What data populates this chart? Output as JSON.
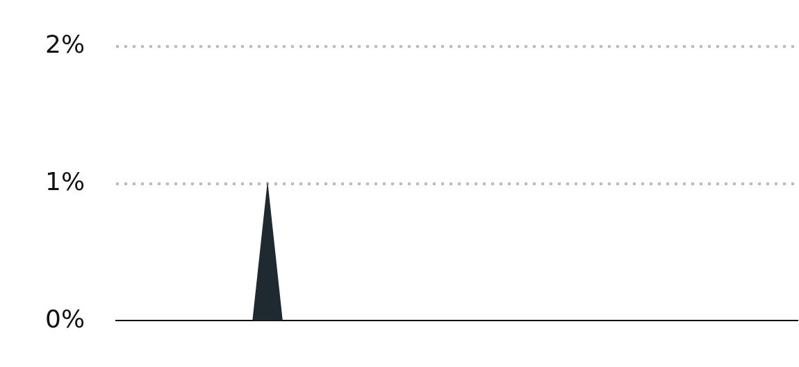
{
  "chart_data": {
    "type": "area",
    "categories": [
      null,
      null,
      null,
      null,
      null,
      null,
      null,
      null,
      null,
      null,
      null,
      null,
      null,
      null,
      null,
      null,
      null,
      null,
      null,
      null,
      null,
      null,
      null,
      null,
      null,
      null,
      null,
      null,
      null,
      null,
      null,
      null,
      null,
      null,
      null,
      null,
      null,
      null,
      null,
      null,
      null,
      null,
      null,
      null,
      null,
      null
    ],
    "series": [
      {
        "color": "#1f2a30",
        "values": [
          0,
          0,
          0,
          0,
          0,
          0,
          0,
          0,
          0,
          0,
          1.02,
          0,
          0,
          0,
          0,
          0,
          0,
          0,
          0,
          0,
          0,
          0,
          0,
          0,
          0,
          0,
          0,
          0,
          0,
          0,
          0,
          0,
          0,
          0,
          0,
          0,
          0,
          0,
          0,
          0,
          0,
          0,
          0,
          0,
          0,
          0
        ]
      }
    ],
    "ylim": [
      0,
      2
    ],
    "yticks": [
      {
        "value": 0,
        "label": "0%"
      },
      {
        "value": 1,
        "label": "1%"
      },
      {
        "value": 2,
        "label": "2%"
      }
    ],
    "grid": "y",
    "tick_labels": "y",
    "legend": false,
    "marker": "none"
  }
}
